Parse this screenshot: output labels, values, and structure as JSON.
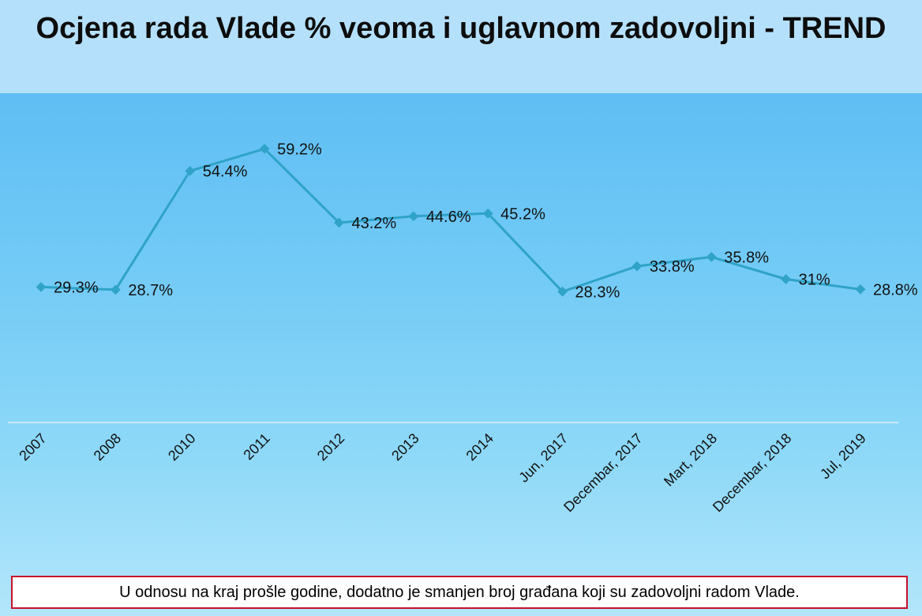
{
  "chart_data": {
    "type": "line",
    "title": "Ocjena rada Vlade % veoma i uglavnom zadovoljni - TREND",
    "categories": [
      "2007",
      "2008",
      "2010",
      "2011",
      "2012",
      "2013",
      "2014",
      "Jun, 2017",
      "Decembar, 2017",
      "Mart, 2018",
      "Decembar, 2018",
      "Jul, 2019"
    ],
    "series": [
      {
        "values": [
          29.3,
          28.7,
          54.4,
          59.2,
          43.2,
          44.6,
          45.2,
          28.3,
          33.8,
          35.8,
          31,
          28.8
        ],
        "labels": [
          "29.3%",
          "28.7%",
          "54.4%",
          "59.2%",
          "43.2%",
          "44.6%",
          "45.2%",
          "28.3%",
          "33.8%",
          "35.8%",
          "31%",
          "28.8%"
        ],
        "color": "#2fa3c8"
      }
    ],
    "ylim": [
      0,
      90
    ],
    "grid": false,
    "legend": "none",
    "xlabel": "",
    "ylabel": ""
  },
  "note": "U odnosu na kraj prošle godine, dodatno je smanjen broj građana koji su zadovoljni radom Vlade.",
  "colors": {
    "header_bg": "#b5e0fb",
    "line": "#2fa3c8",
    "note_border": "#c8102e"
  }
}
